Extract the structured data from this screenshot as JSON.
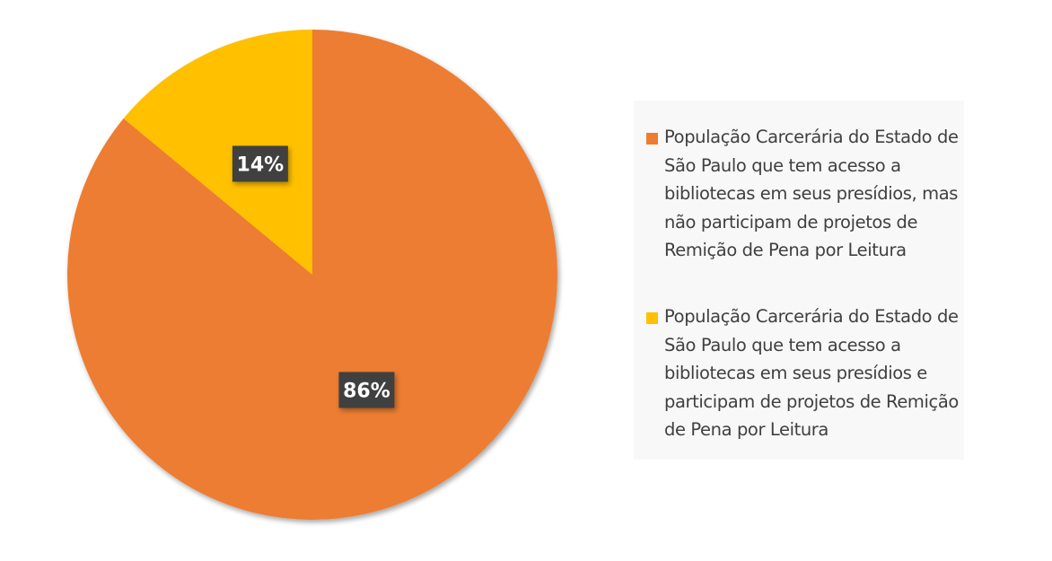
{
  "chart_data": {
    "type": "pie",
    "title": "",
    "series": [
      {
        "name": "População Carcerária do Estado de São Paulo que tem acesso a bibliotecas em seus presídios, mas não participam de projetos de Remição de Pena por Leitura",
        "value": 86,
        "label": "86%",
        "color": "#ED7D31"
      },
      {
        "name": "População Carcerária do Estado de São Paulo que tem acesso a bibliotecas em seus presídios e participam de projetos de Remição de Pena por Leitura",
        "value": 14,
        "label": "14%",
        "color": "#FFC000"
      }
    ],
    "legend_position": "right",
    "data_label_background": "#404040"
  }
}
